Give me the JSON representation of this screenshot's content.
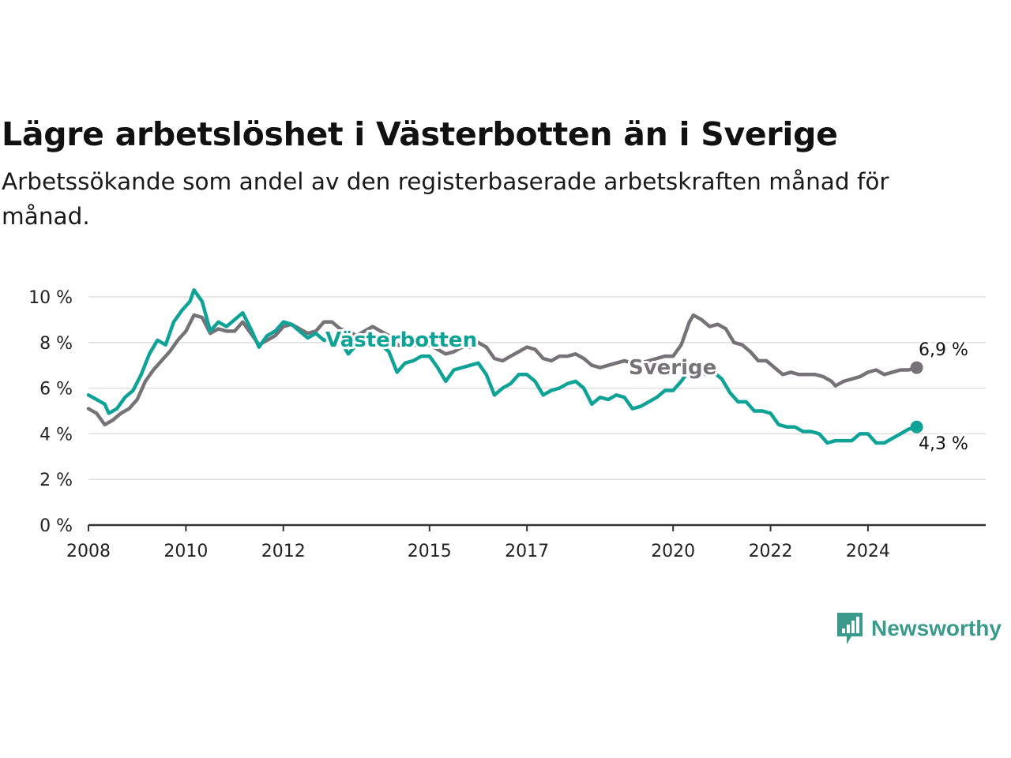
{
  "title": "Lägre arbetslöshet i Västerbotten än i Sverige",
  "subtitle": "Arbetssökande som andel av den registerbaserade arbetskraften månad för månad.",
  "brand": "Newsworthy",
  "colors": {
    "vasterbotten": "#0fa397",
    "sverige": "#757378",
    "brand": "#3a9a8b",
    "grid": "#dddddd",
    "axis": "#333333"
  },
  "chart_data": {
    "type": "line",
    "title": "Lägre arbetslöshet i Västerbotten än i Sverige",
    "subtitle": "Arbetssökande som andel av den registerbaserade arbetskraften månad för månad.",
    "xlabel": "",
    "ylabel": "",
    "xlim": [
      "2008-01",
      "2026-06"
    ],
    "ylim": [
      0,
      10
    ],
    "yticks": [
      0,
      2,
      4,
      6,
      8,
      10
    ],
    "ytick_labels": [
      "0 %",
      "2 %",
      "4 %",
      "6 %",
      "8 %",
      "10 %"
    ],
    "xtick_labels": [
      "2008",
      "2010",
      "2012",
      "2015",
      "2017",
      "2020",
      "2022",
      "2024"
    ],
    "grid": true,
    "series": [
      {
        "name": "Sverige",
        "color": "#757378",
        "end_label": "6,9 %",
        "points": [
          [
            "2008-01",
            5.1
          ],
          [
            "2008-03",
            4.9
          ],
          [
            "2008-05",
            4.4
          ],
          [
            "2008-07",
            4.6
          ],
          [
            "2008-09",
            4.9
          ],
          [
            "2008-11",
            5.1
          ],
          [
            "2009-01",
            5.5
          ],
          [
            "2009-03",
            6.3
          ],
          [
            "2009-05",
            6.8
          ],
          [
            "2009-07",
            7.2
          ],
          [
            "2009-09",
            7.6
          ],
          [
            "2009-11",
            8.1
          ],
          [
            "2010-01",
            8.5
          ],
          [
            "2010-03",
            9.2
          ],
          [
            "2010-05",
            9.1
          ],
          [
            "2010-07",
            8.4
          ],
          [
            "2010-09",
            8.6
          ],
          [
            "2010-11",
            8.5
          ],
          [
            "2011-01",
            8.5
          ],
          [
            "2011-03",
            8.9
          ],
          [
            "2011-05",
            8.4
          ],
          [
            "2011-07",
            7.9
          ],
          [
            "2011-09",
            8.1
          ],
          [
            "2011-11",
            8.3
          ],
          [
            "2012-01",
            8.7
          ],
          [
            "2012-03",
            8.8
          ],
          [
            "2012-05",
            8.6
          ],
          [
            "2012-07",
            8.4
          ],
          [
            "2012-09",
            8.5
          ],
          [
            "2012-11",
            8.9
          ],
          [
            "2013-01",
            8.9
          ],
          [
            "2013-03",
            8.6
          ],
          [
            "2013-05",
            8.5
          ],
          [
            "2013-07",
            8.3
          ],
          [
            "2013-09",
            8.5
          ],
          [
            "2013-11",
            8.7
          ],
          [
            "2014-01",
            8.5
          ],
          [
            "2014-03",
            8.3
          ],
          [
            "2014-05",
            7.9
          ],
          [
            "2014-07",
            7.8
          ],
          [
            "2014-09",
            7.9
          ],
          [
            "2014-11",
            7.8
          ],
          [
            "2015-01",
            7.9
          ],
          [
            "2015-03",
            7.7
          ],
          [
            "2015-05",
            7.5
          ],
          [
            "2015-07",
            7.6
          ],
          [
            "2015-09",
            7.8
          ],
          [
            "2015-11",
            7.8
          ],
          [
            "2016-01",
            8.0
          ],
          [
            "2016-03",
            7.8
          ],
          [
            "2016-05",
            7.3
          ],
          [
            "2016-07",
            7.2
          ],
          [
            "2016-09",
            7.4
          ],
          [
            "2016-11",
            7.6
          ],
          [
            "2017-01",
            7.8
          ],
          [
            "2017-03",
            7.7
          ],
          [
            "2017-05",
            7.3
          ],
          [
            "2017-07",
            7.2
          ],
          [
            "2017-09",
            7.4
          ],
          [
            "2017-11",
            7.4
          ],
          [
            "2018-01",
            7.5
          ],
          [
            "2018-03",
            7.3
          ],
          [
            "2018-05",
            7.0
          ],
          [
            "2018-07",
            6.9
          ],
          [
            "2018-09",
            7.0
          ],
          [
            "2018-11",
            7.1
          ],
          [
            "2019-01",
            7.2
          ],
          [
            "2019-03",
            7.1
          ],
          [
            "2019-05",
            7.1
          ],
          [
            "2019-07",
            7.2
          ],
          [
            "2019-09",
            7.3
          ],
          [
            "2019-11",
            7.4
          ],
          [
            "2020-01",
            7.4
          ],
          [
            "2020-03",
            7.9
          ],
          [
            "2020-05",
            8.9
          ],
          [
            "2020-06",
            9.2
          ],
          [
            "2020-08",
            9.0
          ],
          [
            "2020-10",
            8.7
          ],
          [
            "2020-12",
            8.8
          ],
          [
            "2021-02",
            8.6
          ],
          [
            "2021-04",
            8.0
          ],
          [
            "2021-06",
            7.9
          ],
          [
            "2021-08",
            7.6
          ],
          [
            "2021-10",
            7.2
          ],
          [
            "2021-12",
            7.2
          ],
          [
            "2022-02",
            6.9
          ],
          [
            "2022-04",
            6.6
          ],
          [
            "2022-06",
            6.7
          ],
          [
            "2022-08",
            6.6
          ],
          [
            "2022-10",
            6.6
          ],
          [
            "2022-12",
            6.6
          ],
          [
            "2023-02",
            6.5
          ],
          [
            "2023-04",
            6.3
          ],
          [
            "2023-05",
            6.1
          ],
          [
            "2023-07",
            6.3
          ],
          [
            "2023-09",
            6.4
          ],
          [
            "2023-11",
            6.5
          ],
          [
            "2024-01",
            6.7
          ],
          [
            "2024-03",
            6.8
          ],
          [
            "2024-05",
            6.6
          ],
          [
            "2024-07",
            6.7
          ],
          [
            "2024-09",
            6.8
          ],
          [
            "2024-11",
            6.8
          ],
          [
            "2025-01",
            6.9
          ]
        ]
      },
      {
        "name": "Västerbotten",
        "color": "#0fa397",
        "end_label": "4,3 %",
        "points": [
          [
            "2008-01",
            5.7
          ],
          [
            "2008-03",
            5.5
          ],
          [
            "2008-05",
            5.3
          ],
          [
            "2008-06",
            4.9
          ],
          [
            "2008-08",
            5.1
          ],
          [
            "2008-10",
            5.6
          ],
          [
            "2008-12",
            5.9
          ],
          [
            "2009-02",
            6.6
          ],
          [
            "2009-04",
            7.5
          ],
          [
            "2009-06",
            8.1
          ],
          [
            "2009-08",
            7.9
          ],
          [
            "2009-10",
            8.9
          ],
          [
            "2009-12",
            9.4
          ],
          [
            "2010-02",
            9.8
          ],
          [
            "2010-03",
            10.3
          ],
          [
            "2010-05",
            9.8
          ],
          [
            "2010-07",
            8.5
          ],
          [
            "2010-09",
            8.9
          ],
          [
            "2010-11",
            8.7
          ],
          [
            "2011-01",
            9.0
          ],
          [
            "2011-03",
            9.3
          ],
          [
            "2011-05",
            8.6
          ],
          [
            "2011-07",
            7.8
          ],
          [
            "2011-09",
            8.3
          ],
          [
            "2011-11",
            8.5
          ],
          [
            "2012-01",
            8.9
          ],
          [
            "2012-03",
            8.8
          ],
          [
            "2012-05",
            8.5
          ],
          [
            "2012-07",
            8.2
          ],
          [
            "2012-09",
            8.4
          ],
          [
            "2012-11",
            8.1
          ],
          [
            "2013-01",
            8.2
          ],
          [
            "2013-03",
            8.1
          ],
          [
            "2013-05",
            7.5
          ],
          [
            "2013-07",
            7.9
          ],
          [
            "2013-09",
            8.0
          ],
          [
            "2013-11",
            8.2
          ],
          [
            "2014-01",
            7.9
          ],
          [
            "2014-03",
            7.6
          ],
          [
            "2014-05",
            6.7
          ],
          [
            "2014-07",
            7.1
          ],
          [
            "2014-09",
            7.2
          ],
          [
            "2014-11",
            7.4
          ],
          [
            "2015-01",
            7.4
          ],
          [
            "2015-03",
            6.9
          ],
          [
            "2015-05",
            6.3
          ],
          [
            "2015-07",
            6.8
          ],
          [
            "2015-09",
            6.9
          ],
          [
            "2015-11",
            7.0
          ],
          [
            "2016-01",
            7.1
          ],
          [
            "2016-03",
            6.6
          ],
          [
            "2016-05",
            5.7
          ],
          [
            "2016-07",
            6.0
          ],
          [
            "2016-09",
            6.2
          ],
          [
            "2016-11",
            6.6
          ],
          [
            "2017-01",
            6.6
          ],
          [
            "2017-03",
            6.3
          ],
          [
            "2017-05",
            5.7
          ],
          [
            "2017-07",
            5.9
          ],
          [
            "2017-09",
            6.0
          ],
          [
            "2017-11",
            6.2
          ],
          [
            "2018-01",
            6.3
          ],
          [
            "2018-03",
            6.0
          ],
          [
            "2018-05",
            5.3
          ],
          [
            "2018-07",
            5.6
          ],
          [
            "2018-09",
            5.5
          ],
          [
            "2018-11",
            5.7
          ],
          [
            "2019-01",
            5.6
          ],
          [
            "2019-03",
            5.1
          ],
          [
            "2019-05",
            5.2
          ],
          [
            "2019-07",
            5.4
          ],
          [
            "2019-09",
            5.6
          ],
          [
            "2019-11",
            5.9
          ],
          [
            "2020-01",
            5.9
          ],
          [
            "2020-03",
            6.3
          ],
          [
            "2020-05",
            6.8
          ],
          [
            "2020-07",
            6.9
          ],
          [
            "2020-09",
            6.6
          ],
          [
            "2020-11",
            6.7
          ],
          [
            "2021-01",
            6.4
          ],
          [
            "2021-03",
            5.8
          ],
          [
            "2021-05",
            5.4
          ],
          [
            "2021-07",
            5.4
          ],
          [
            "2021-09",
            5.0
          ],
          [
            "2021-11",
            5.0
          ],
          [
            "2022-01",
            4.9
          ],
          [
            "2022-03",
            4.4
          ],
          [
            "2022-05",
            4.3
          ],
          [
            "2022-07",
            4.3
          ],
          [
            "2022-09",
            4.1
          ],
          [
            "2022-11",
            4.1
          ],
          [
            "2023-01",
            4.0
          ],
          [
            "2023-03",
            3.6
          ],
          [
            "2023-05",
            3.7
          ],
          [
            "2023-07",
            3.7
          ],
          [
            "2023-09",
            3.7
          ],
          [
            "2023-11",
            4.0
          ],
          [
            "2024-01",
            4.0
          ],
          [
            "2024-03",
            3.6
          ],
          [
            "2024-05",
            3.6
          ],
          [
            "2024-07",
            3.8
          ],
          [
            "2024-09",
            4.0
          ],
          [
            "2024-11",
            4.2
          ],
          [
            "2025-01",
            4.3
          ]
        ]
      }
    ]
  }
}
